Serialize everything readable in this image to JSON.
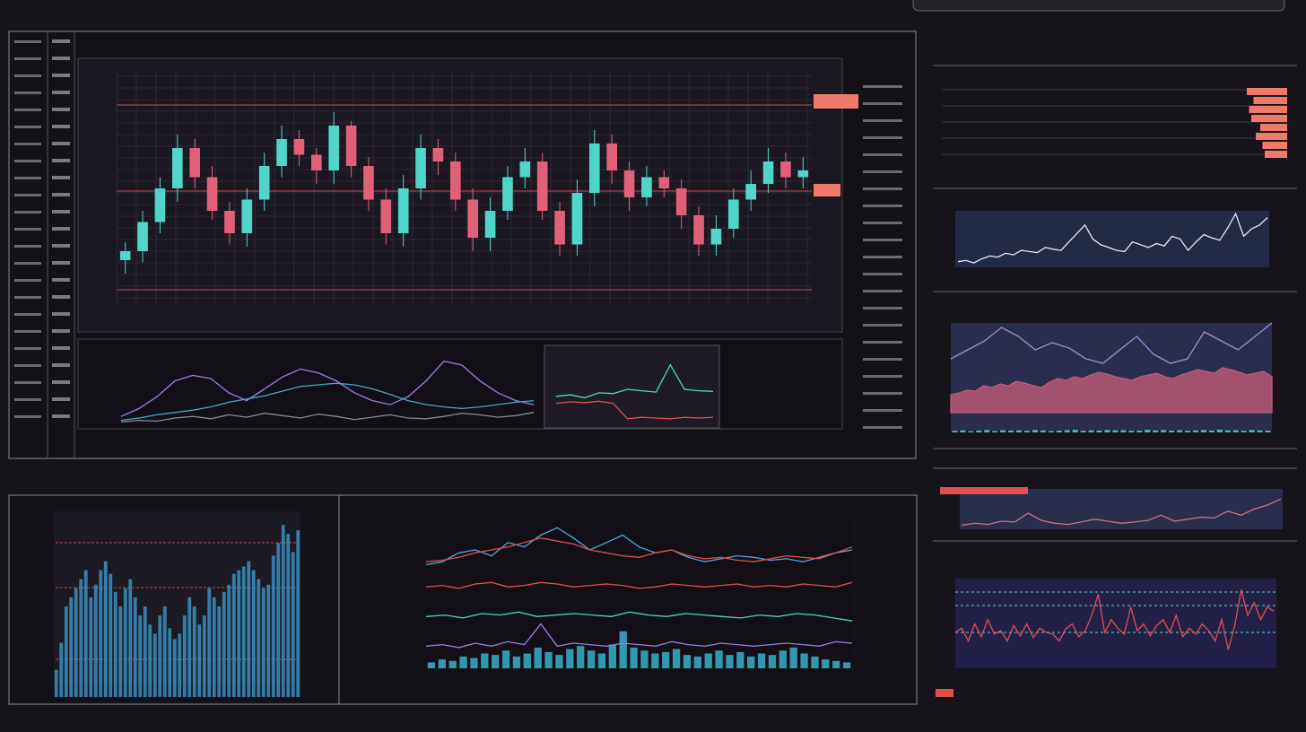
{
  "panels": {
    "price": {
      "type": "candlestick",
      "ylim": [
        0,
        100
      ],
      "up_color": "#4fd6c8",
      "down_color": "#e0607a",
      "open": [
        18,
        22,
        35,
        50,
        68,
        55,
        40,
        30,
        45,
        60,
        72,
        65,
        58,
        78,
        60,
        45,
        30,
        50,
        68,
        62,
        45,
        28,
        40,
        55,
        62,
        40,
        25,
        48,
        70,
        58,
        46,
        55,
        50,
        38,
        25,
        32,
        45,
        52,
        62,
        55
      ],
      "close": [
        22,
        35,
        50,
        68,
        55,
        40,
        30,
        45,
        60,
        72,
        65,
        58,
        78,
        60,
        45,
        30,
        50,
        68,
        62,
        45,
        28,
        40,
        55,
        62,
        40,
        25,
        48,
        70,
        58,
        46,
        55,
        50,
        38,
        25,
        32,
        45,
        52,
        62,
        55,
        58
      ],
      "high": [
        26,
        40,
        55,
        74,
        72,
        60,
        44,
        50,
        66,
        78,
        76,
        68,
        84,
        80,
        64,
        50,
        56,
        74,
        72,
        66,
        50,
        46,
        60,
        68,
        66,
        44,
        54,
        76,
        74,
        62,
        60,
        58,
        54,
        42,
        38,
        50,
        58,
        68,
        66,
        64
      ],
      "low": [
        12,
        17,
        30,
        44,
        50,
        36,
        25,
        24,
        40,
        55,
        60,
        52,
        52,
        55,
        40,
        25,
        24,
        45,
        56,
        40,
        22,
        22,
        36,
        50,
        36,
        20,
        20,
        42,
        52,
        40,
        42,
        46,
        32,
        20,
        20,
        28,
        40,
        48,
        50,
        50
      ]
    },
    "oscillator": {
      "type": "line",
      "ylim": [
        0,
        100
      ],
      "series": [
        {
          "color": "#9b7fe6",
          "values": [
            10,
            20,
            35,
            55,
            62,
            58,
            40,
            30,
            45,
            60,
            70,
            65,
            55,
            40,
            30,
            25,
            35,
            55,
            80,
            75,
            55,
            40,
            30,
            25
          ]
        },
        {
          "color": "#4fa3c7",
          "values": [
            5,
            8,
            12,
            15,
            18,
            22,
            28,
            32,
            36,
            42,
            48,
            50,
            52,
            50,
            45,
            38,
            30,
            25,
            22,
            20,
            22,
            25,
            28,
            30
          ]
        },
        {
          "color": "#8a8a95",
          "values": [
            3,
            5,
            4,
            8,
            10,
            7,
            12,
            9,
            14,
            11,
            8,
            13,
            10,
            6,
            9,
            12,
            8,
            7,
            10,
            14,
            12,
            9,
            11,
            15
          ]
        }
      ]
    },
    "mini": {
      "type": "line",
      "ylim": [
        0,
        100
      ],
      "series": [
        {
          "color": "#4fd6c8",
          "values": [
            40,
            42,
            38,
            45,
            44,
            50,
            48,
            46,
            85,
            50,
            48,
            47
          ]
        },
        {
          "color": "#e0504a",
          "values": [
            30,
            32,
            31,
            33,
            30,
            8,
            10,
            9,
            8,
            10,
            9,
            10
          ]
        }
      ]
    },
    "orderbook": {
      "type": "hbar",
      "xlim": [
        0,
        100
      ],
      "color": "#f07a6a",
      "values": [
        90,
        75,
        85,
        80,
        60,
        70,
        55,
        50
      ]
    },
    "ticker": {
      "type": "line",
      "ylim": [
        0,
        100
      ],
      "series": [
        {
          "color": "#e8e8f0",
          "values": [
            10,
            12,
            8,
            15,
            20,
            18,
            25,
            22,
            30,
            28,
            26,
            35,
            32,
            30,
            45,
            60,
            75,
            50,
            40,
            35,
            30,
            28,
            45,
            40,
            35,
            42,
            38,
            55,
            50,
            30,
            45,
            58,
            52,
            48,
            70,
            95,
            55,
            68,
            75,
            88
          ]
        }
      ]
    },
    "depth": {
      "type": "area",
      "ylim": [
        0,
        100
      ],
      "series": [
        {
          "color": "#c05a78",
          "values": [
            20,
            22,
            25,
            24,
            30,
            28,
            32,
            30,
            35,
            33,
            30,
            28,
            34,
            38,
            36,
            40,
            38,
            42,
            45,
            43,
            40,
            38,
            36,
            40,
            42,
            44,
            40,
            38,
            42,
            45,
            48,
            46,
            44,
            50,
            48,
            45,
            42,
            44,
            46,
            40
          ]
        },
        {
          "color": "#a58ad8",
          "values": [
            60,
            70,
            80,
            95,
            85,
            70,
            78,
            72,
            60,
            55,
            70,
            85,
            65,
            55,
            60,
            90,
            80,
            70,
            85,
            100
          ]
        }
      ],
      "volume": {
        "color": "#4fd6c8",
        "values": [
          8,
          10,
          6,
          9,
          12,
          7,
          11,
          9,
          10,
          8,
          12,
          10,
          7,
          9,
          11,
          13,
          8,
          10,
          9,
          12,
          10,
          11,
          8,
          9,
          13,
          10,
          12,
          9,
          11,
          8,
          10,
          12,
          9,
          14,
          10,
          11,
          8,
          12,
          10,
          9
        ]
      }
    },
    "spark": {
      "type": "line",
      "ylim": [
        0,
        100
      ],
      "series": [
        {
          "color": "#d07080",
          "values": [
            10,
            15,
            12,
            20,
            18,
            40,
            22,
            15,
            12,
            18,
            25,
            20,
            15,
            18,
            22,
            35,
            20,
            25,
            30,
            28,
            45,
            35,
            50,
            60,
            75
          ]
        }
      ]
    },
    "volatility": {
      "type": "line",
      "ylim": [
        0,
        100
      ],
      "series": [
        {
          "color": "#e0504a",
          "values": [
            40,
            45,
            30,
            50,
            35,
            55,
            38,
            42,
            30,
            48,
            36,
            50,
            34,
            45,
            40,
            38,
            30,
            44,
            50,
            35,
            42,
            60,
            85,
            40,
            55,
            45,
            38,
            70,
            42,
            50,
            36,
            48,
            55,
            40,
            60,
            35,
            45,
            38,
            50,
            42,
            30,
            55,
            20,
            48,
            90,
            60,
            75,
            55,
            70,
            65
          ]
        }
      ]
    },
    "histogram": {
      "type": "bar",
      "ylim": [
        0,
        100
      ],
      "color": "#3a8fc0",
      "values": [
        15,
        30,
        50,
        55,
        60,
        65,
        70,
        55,
        62,
        70,
        75,
        68,
        58,
        50,
        60,
        65,
        55,
        45,
        50,
        40,
        35,
        45,
        50,
        38,
        32,
        35,
        45,
        55,
        50,
        40,
        45,
        60,
        55,
        50,
        58,
        62,
        68,
        70,
        72,
        75,
        70,
        65,
        60,
        62,
        78,
        85,
        95,
        90,
        80,
        92
      ]
    },
    "multi": {
      "type": "line",
      "ylim": [
        0,
        100
      ],
      "series": [
        {
          "color": "#4fa8e0",
          "values": [
            70,
            72,
            78,
            80,
            76,
            85,
            82,
            90,
            95,
            88,
            80,
            85,
            90,
            82,
            78,
            80,
            75,
            72,
            74,
            76,
            75,
            73,
            74,
            72,
            75,
            78,
            80
          ]
        },
        {
          "color": "#e0504a",
          "values": [
            72,
            73,
            75,
            78,
            80,
            82,
            85,
            88,
            86,
            84,
            80,
            78,
            76,
            75,
            78,
            80,
            76,
            74,
            75,
            73,
            72,
            74,
            76,
            75,
            74,
            78,
            82
          ]
        },
        {
          "color": "#e0504a",
          "values": [
            55,
            56,
            54,
            57,
            58,
            55,
            56,
            58,
            57,
            55,
            56,
            57,
            56,
            54,
            55,
            57,
            56,
            55,
            56,
            57,
            55,
            56,
            55,
            57,
            56,
            55,
            58
          ]
        },
        {
          "color": "#4fd6c8",
          "values": [
            35,
            36,
            34,
            37,
            36,
            38,
            35,
            36,
            37,
            36,
            35,
            38,
            36,
            35,
            37,
            36,
            35,
            34,
            36,
            35,
            37,
            36,
            34,
            32
          ]
        },
        {
          "color": "#9b7fe6",
          "values": [
            15,
            16,
            14,
            17,
            15,
            18,
            16,
            30,
            15,
            17,
            16,
            15,
            17,
            16,
            15,
            18,
            16,
            15,
            17,
            16,
            15,
            16,
            17,
            16,
            15,
            18,
            17
          ]
        }
      ],
      "volume": {
        "color": "#3ab0c8",
        "values": [
          4,
          6,
          5,
          8,
          7,
          10,
          9,
          12,
          8,
          10,
          14,
          11,
          9,
          13,
          15,
          12,
          10,
          16,
          25,
          14,
          12,
          10,
          11,
          13,
          9,
          8,
          10,
          12,
          9,
          11,
          8,
          10,
          9,
          12,
          14,
          10,
          8,
          6,
          5,
          4
        ]
      }
    }
  }
}
